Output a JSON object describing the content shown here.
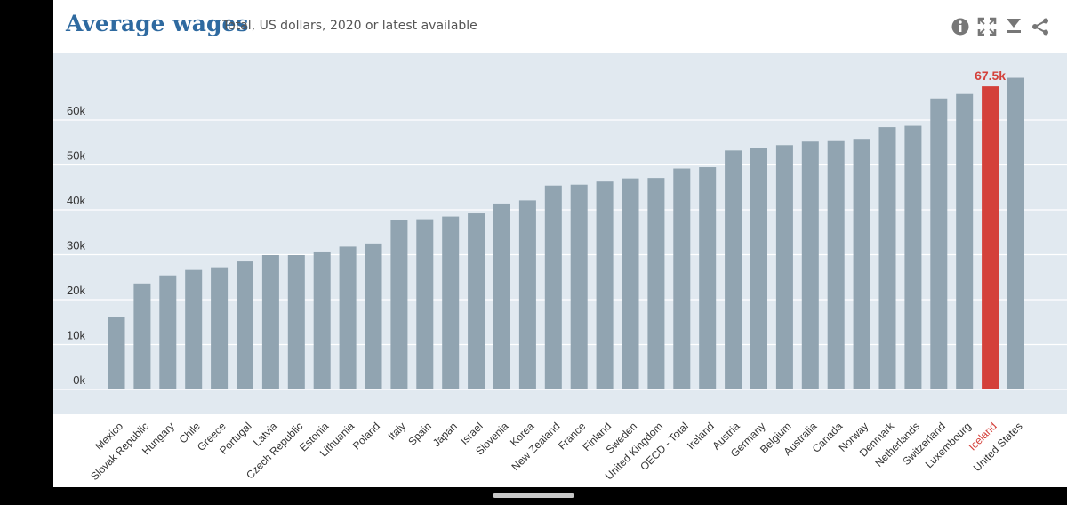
{
  "header": {
    "title": "Average wages",
    "subtitle": "Total, US dollars, 2020 or latest available"
  },
  "toolbar": {
    "icons": [
      "info-icon",
      "expand-icon",
      "download-icon",
      "share-icon"
    ]
  },
  "colors": {
    "bar": "#91a4b1",
    "highlight": "#d4403a",
    "plot_bg": "#e1e9f0",
    "title": "#2f6aa0"
  },
  "chart_data": {
    "type": "bar",
    "categories": [
      "Mexico",
      "Slovak Republic",
      "Hungary",
      "Chile",
      "Greece",
      "Portugal",
      "Latvia",
      "Czech Republic",
      "Estonia",
      "Lithuania",
      "Poland",
      "Italy",
      "Spain",
      "Japan",
      "Israel",
      "Slovenia",
      "Korea",
      "New Zealand",
      "France",
      "Finland",
      "Sweden",
      "United Kingdom",
      "OECD - Total",
      "Ireland",
      "Austria",
      "Germany",
      "Belgium",
      "Australia",
      "Canada",
      "Norway",
      "Denmark",
      "Netherlands",
      "Switzerland",
      "Luxembourg",
      "Iceland",
      "United States"
    ],
    "values": [
      16200,
      23600,
      25400,
      26600,
      27200,
      28500,
      29900,
      29900,
      30700,
      31800,
      32500,
      37800,
      37900,
      38500,
      39200,
      41400,
      42100,
      45400,
      45600,
      46300,
      47000,
      47100,
      49200,
      49500,
      53200,
      53700,
      54400,
      55200,
      55300,
      55800,
      58400,
      58700,
      64800,
      65800,
      67500,
      69400
    ],
    "highlight": {
      "category": "Iceland",
      "label": "67.5k"
    },
    "y_ticks": [
      "0k",
      "10k",
      "20k",
      "30k",
      "40k",
      "50k",
      "60k"
    ],
    "ylim": [
      0,
      70000
    ],
    "grid": true
  }
}
